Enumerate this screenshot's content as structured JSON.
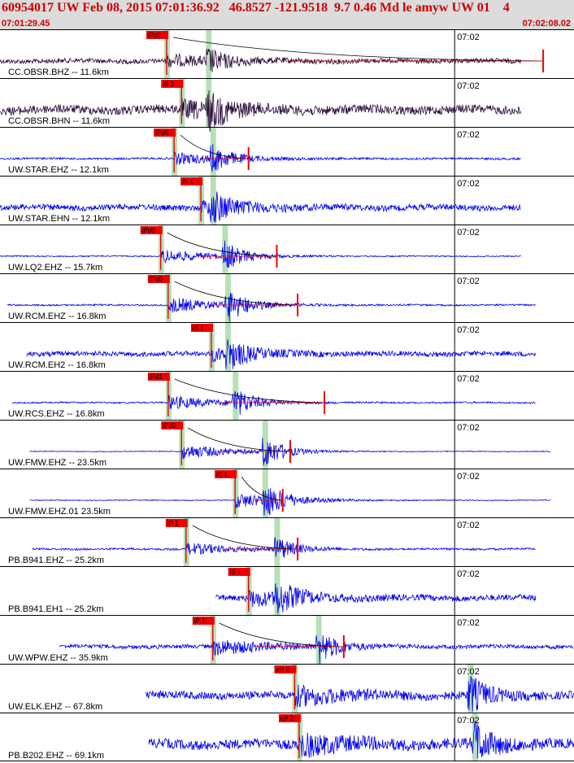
{
  "header": {
    "title": "60954017 UW Feb 08, 2015 07:01:36.92   46.8527 -121.9518  9.7 0.46 Md le amyw UW 01    4",
    "start_time": "07:01:29.45",
    "end_time": "07:02:08.02"
  },
  "colors": {
    "header_bg": "#dcdcdc",
    "header_text": "#cc0000",
    "trace_blue": "#0000ee",
    "trace_dark": "#2a0a3a",
    "pick_red": "#ee0000",
    "pick_band": "#b8e0b8",
    "coda_line": "#000000"
  },
  "chart_data": {
    "type": "line",
    "title": "60954017 UW Feb 08, 2015 07:01:36.92   46.8527 -121.9518  9.7 0.46 Md le amyw UW 01    4",
    "time_range": [
      "07:01:29.45",
      "07:02:08.02"
    ],
    "minute_tick_label": "07:02",
    "minute_tick_seconds": 30.55,
    "total_seconds": 38.57,
    "traces": [
      {
        "label": "CC.OBSR.BHZ -- 11.6km",
        "color": "dark",
        "start": 0.0,
        "end": 35.0,
        "pick": "iPc0",
        "pick_t": 11.2,
        "s_t": 14.0,
        "amp": 0.55,
        "noise": 0.12,
        "coda_end": 36.5
      },
      {
        "label": "CC.OBSR.BHN -- 11.6km",
        "color": "dark",
        "start": 0.0,
        "end": 35.0,
        "pick": "iS 1",
        "pick_t": 12.2,
        "s_t": 14.0,
        "amp": 0.75,
        "noise": 0.22,
        "coda_end": null
      },
      {
        "label": "UW.STAR.EHZ -- 12.1km",
        "color": "blue",
        "start": 0.0,
        "end": 35.0,
        "pick": "iPd0",
        "pick_t": 11.7,
        "s_t": 14.3,
        "amp": 0.6,
        "noise": 0.05,
        "coda_end": 16.7
      },
      {
        "label": "UW.STAR.EHN -- 12.1km",
        "color": "blue",
        "start": 0.0,
        "end": 35.0,
        "pick": "iS 1",
        "pick_t": 13.5,
        "s_t": 14.3,
        "amp": 0.6,
        "noise": 0.15,
        "coda_end": null
      },
      {
        "label": "UW.LQ2.EHZ -- 15.7km",
        "color": "blue",
        "start": 0.0,
        "end": 35.0,
        "pick": "iPd0",
        "pick_t": 10.8,
        "s_t": 15.1,
        "amp": 0.7,
        "noise": 0.03,
        "coda_end": 18.6
      },
      {
        "label": "UW.RCM.EHZ -- 16.8km",
        "color": "blue",
        "start": 0.5,
        "end": 36.0,
        "pick": "iPd0",
        "pick_t": 11.3,
        "s_t": 15.3,
        "amp": 0.8,
        "noise": 0.04,
        "coda_end": 20.0
      },
      {
        "label": "UW.RCM.EH2 -- 16.8km",
        "color": "blue",
        "start": 1.8,
        "end": 36.0,
        "pick": "iS 1",
        "pick_t": 14.2,
        "s_t": 15.3,
        "amp": 0.6,
        "noise": 0.12,
        "coda_end": null
      },
      {
        "label": "UW.RCS.EHZ -- 16.8km",
        "color": "blue",
        "start": 0.8,
        "end": 36.0,
        "pick": "iPd1",
        "pick_t": 11.3,
        "s_t": 15.8,
        "amp": 0.7,
        "noise": 0.04,
        "coda_end": 21.8
      },
      {
        "label": "UW.FMW.EHZ -- 23.5km",
        "color": "blue",
        "start": 2.0,
        "end": 37.0,
        "pick": "iPd0",
        "pick_t": 12.2,
        "s_t": 17.8,
        "amp": 0.8,
        "noise": 0.02,
        "coda_end": 19.5
      },
      {
        "label": "UW.FMW.EHZ.01 23.5km",
        "color": "blue",
        "start": 2.0,
        "end": 37.0,
        "pick": "iS 1",
        "pick_t": 15.8,
        "s_t": 17.8,
        "amp": 0.8,
        "noise": 0.02,
        "coda_end": 19.0
      },
      {
        "label": "PB.B941.EHZ -- 25.2km",
        "color": "blue",
        "start": 2.2,
        "end": 36.0,
        "pick": "iP 1",
        "pick_t": 12.5,
        "s_t": 18.6,
        "amp": 0.6,
        "noise": 0.05,
        "coda_end": 20.0
      },
      {
        "label": "PB.B941.EH1 -- 25.2km",
        "color": "blue",
        "start": 14.5,
        "end": 36.0,
        "pick": "iS 1",
        "pick_t": 16.7,
        "s_t": 18.6,
        "amp": 0.7,
        "noise": 0.15,
        "coda_end": null
      },
      {
        "label": "UW.WPW.EHZ -- 35.9km",
        "color": "blue",
        "start": 4.0,
        "end": 39.3,
        "pick": "iP 1",
        "pick_t": 14.3,
        "s_t": 21.4,
        "amp": 0.8,
        "noise": 0.1,
        "coda_end": 23.1
      },
      {
        "label": "UW.ELK.EHZ -- 67.8km",
        "color": "blue",
        "start": 9.8,
        "end": 45.0,
        "pick": "eP 2",
        "pick_t": 19.8,
        "s_t": 31.6,
        "amp": 0.9,
        "noise": 0.2,
        "coda_end": null
      },
      {
        "label": "PB.B202.EHZ -- 69.1km",
        "color": "blue",
        "start": 10.0,
        "end": 45.0,
        "pick": "eP 2",
        "pick_t": 20.1,
        "s_t": 31.9,
        "amp": 1.0,
        "noise": 0.25,
        "coda_end": null
      }
    ]
  }
}
